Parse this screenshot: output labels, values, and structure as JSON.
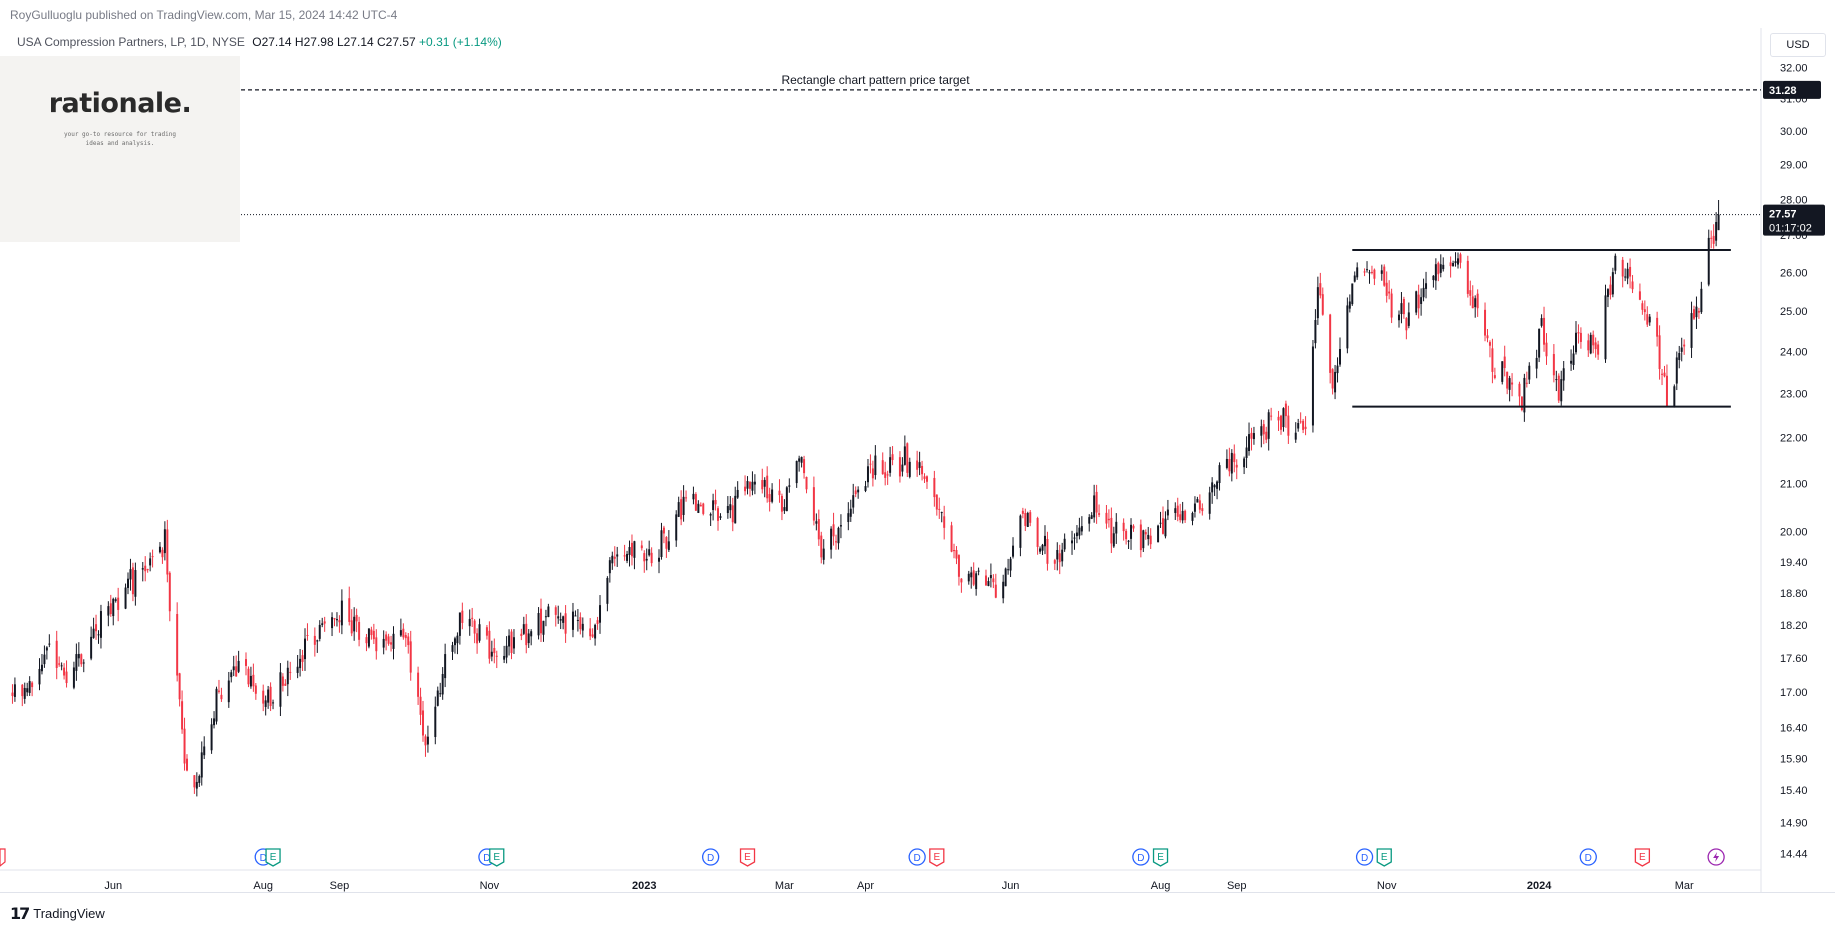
{
  "header": {
    "attribution": "RoyGulluoglu published on TradingView.com, Mar 15, 2024 14:42 UTC-4"
  },
  "legend": {
    "symbol": "USA Compression Partners, LP, 1D, NYSE",
    "ohlc": "O27.14  H27.98  L27.14  C27.57",
    "change": "+0.31 (+1.14%)"
  },
  "logo": {
    "name": "rationale.",
    "tagline": "your go-to resource for trading ideas and analysis."
  },
  "colors": {
    "up": "#131722",
    "down": "#f23645",
    "grid": "#ffffff"
  },
  "footer": {
    "brand": "TradingView"
  },
  "chart_data": {
    "type": "candlestick",
    "currency": "USD",
    "y_scale": "log",
    "ylim": [
      14.2,
      33.1
    ],
    "price_ticks": [
      "32.00",
      "31.00",
      "30.00",
      "29.00",
      "28.00",
      "27.00",
      "26.00",
      "25.00",
      "24.00",
      "23.00",
      "22.00",
      "21.00",
      "20.00",
      "19.40",
      "18.80",
      "18.20",
      "17.60",
      "17.00",
      "16.40",
      "15.90",
      "15.40",
      "14.90",
      "14.44"
    ],
    "x_ticks": [
      {
        "label": "Jun",
        "date": "2022-06-01",
        "bold": false
      },
      {
        "label": "Aug",
        "date": "2022-08-01",
        "bold": false
      },
      {
        "label": "Sep",
        "date": "2022-09-01",
        "bold": false
      },
      {
        "label": "Nov",
        "date": "2022-11-01",
        "bold": false
      },
      {
        "label": "2023",
        "date": "2023-01-03",
        "bold": true
      },
      {
        "label": "Mar",
        "date": "2023-03-01",
        "bold": false
      },
      {
        "label": "Apr",
        "date": "2023-04-03",
        "bold": false
      },
      {
        "label": "Jun",
        "date": "2023-06-01",
        "bold": false
      },
      {
        "label": "Aug",
        "date": "2023-08-01",
        "bold": false
      },
      {
        "label": "Sep",
        "date": "2023-09-01",
        "bold": false
      },
      {
        "label": "Nov",
        "date": "2023-11-01",
        "bold": false
      },
      {
        "label": "2024",
        "date": "2024-01-02",
        "bold": true
      },
      {
        "label": "Mar",
        "date": "2024-03-01",
        "bold": false
      }
    ],
    "anchors": [
      {
        "date": "2022-04-25",
        "price": 17.0
      },
      {
        "date": "2022-05-05",
        "price": 17.7
      },
      {
        "date": "2022-05-14",
        "price": 17.2
      },
      {
        "date": "2022-05-28",
        "price": 18.3
      },
      {
        "date": "2022-06-12",
        "price": 19.3
      },
      {
        "date": "2022-06-22",
        "price": 19.8
      },
      {
        "date": "2022-07-02",
        "price": 15.1
      },
      {
        "date": "2022-07-10",
        "price": 16.6
      },
      {
        "date": "2022-07-22",
        "price": 17.5
      },
      {
        "date": "2022-08-02",
        "price": 16.8
      },
      {
        "date": "2022-08-20",
        "price": 17.9
      },
      {
        "date": "2022-09-02",
        "price": 18.5
      },
      {
        "date": "2022-09-15",
        "price": 17.9
      },
      {
        "date": "2022-09-28",
        "price": 18.0
      },
      {
        "date": "2022-10-06",
        "price": 16.1
      },
      {
        "date": "2022-10-15",
        "price": 17.7
      },
      {
        "date": "2022-10-22",
        "price": 18.4
      },
      {
        "date": "2022-11-03",
        "price": 17.6
      },
      {
        "date": "2022-11-25",
        "price": 18.4
      },
      {
        "date": "2022-12-14",
        "price": 18.1
      },
      {
        "date": "2022-12-22",
        "price": 19.6
      },
      {
        "date": "2023-01-08",
        "price": 19.6
      },
      {
        "date": "2023-01-20",
        "price": 20.7
      },
      {
        "date": "2023-02-05",
        "price": 20.3
      },
      {
        "date": "2023-02-18",
        "price": 21.2
      },
      {
        "date": "2023-02-28",
        "price": 20.4
      },
      {
        "date": "2023-03-07",
        "price": 21.8
      },
      {
        "date": "2023-03-16",
        "price": 19.6
      },
      {
        "date": "2023-03-25",
        "price": 20.2
      },
      {
        "date": "2023-04-05",
        "price": 21.3
      },
      {
        "date": "2023-04-20",
        "price": 21.5
      },
      {
        "date": "2023-05-01",
        "price": 20.8
      },
      {
        "date": "2023-05-12",
        "price": 19.1
      },
      {
        "date": "2023-05-20",
        "price": 19.2
      },
      {
        "date": "2023-05-28",
        "price": 18.8
      },
      {
        "date": "2023-06-06",
        "price": 20.3
      },
      {
        "date": "2023-06-20",
        "price": 19.4
      },
      {
        "date": "2023-07-05",
        "price": 20.5
      },
      {
        "date": "2023-07-14",
        "price": 19.9
      },
      {
        "date": "2023-07-30",
        "price": 20.0
      },
      {
        "date": "2023-08-18",
        "price": 20.6
      },
      {
        "date": "2023-09-01",
        "price": 21.6
      },
      {
        "date": "2023-09-15",
        "price": 22.4
      },
      {
        "date": "2023-09-29",
        "price": 22.3
      },
      {
        "date": "2023-10-04",
        "price": 25.5
      },
      {
        "date": "2023-10-10",
        "price": 23.2
      },
      {
        "date": "2023-10-20",
        "price": 26.1
      },
      {
        "date": "2023-10-30",
        "price": 26.0
      },
      {
        "date": "2023-11-03",
        "price": 25.0
      },
      {
        "date": "2023-11-10",
        "price": 24.8
      },
      {
        "date": "2023-11-20",
        "price": 26.0
      },
      {
        "date": "2023-11-30",
        "price": 26.3
      },
      {
        "date": "2023-12-06",
        "price": 25.2
      },
      {
        "date": "2023-12-15",
        "price": 23.6
      },
      {
        "date": "2023-12-26",
        "price": 22.9
      },
      {
        "date": "2024-01-03",
        "price": 24.5
      },
      {
        "date": "2024-01-10",
        "price": 22.9
      },
      {
        "date": "2024-01-18",
        "price": 24.3
      },
      {
        "date": "2024-01-26",
        "price": 24.1
      },
      {
        "date": "2024-02-02",
        "price": 26.4
      },
      {
        "date": "2024-02-12",
        "price": 25.3
      },
      {
        "date": "2024-02-20",
        "price": 23.9
      },
      {
        "date": "2024-02-23",
        "price": 22.8
      },
      {
        "date": "2024-03-01",
        "price": 24.3
      },
      {
        "date": "2024-03-06",
        "price": 25.0
      },
      {
        "date": "2024-03-11",
        "price": 26.6
      },
      {
        "date": "2024-03-14",
        "price": 27.26
      },
      {
        "date": "2024-03-15",
        "price": 27.57
      }
    ],
    "last_candle": {
      "date": "2024-03-15",
      "open": 27.14,
      "high": 27.98,
      "low": 27.14,
      "close": 27.57
    },
    "current_price_label": "27.57",
    "countdown_label": "01:17:02",
    "levels": [
      {
        "name": "target",
        "price": 31.28,
        "style": "dashed",
        "label": "31.28",
        "annotation": "Rectangle chart pattern price target",
        "start": "2022-04-20",
        "end": "2024-04-10"
      },
      {
        "name": "resistance",
        "price": 26.6,
        "style": "solid",
        "start": "2023-10-18",
        "end": "2024-03-20"
      },
      {
        "name": "support",
        "price": 22.7,
        "style": "solid",
        "start": "2023-10-18",
        "end": "2024-03-20"
      }
    ],
    "events": [
      {
        "date": "2022-08-01",
        "type": "D"
      },
      {
        "date": "2022-08-05",
        "type": "E"
      },
      {
        "date": "2022-10-31",
        "type": "D"
      },
      {
        "date": "2022-11-04",
        "type": "E"
      },
      {
        "date": "2023-01-30",
        "type": "D"
      },
      {
        "date": "2023-02-14",
        "type": "E",
        "color": "red"
      },
      {
        "date": "2023-04-24",
        "type": "D"
      },
      {
        "date": "2023-05-02",
        "type": "E",
        "color": "red"
      },
      {
        "date": "2023-07-24",
        "type": "D"
      },
      {
        "date": "2023-08-01",
        "type": "E"
      },
      {
        "date": "2023-10-23",
        "type": "D"
      },
      {
        "date": "2023-10-31",
        "type": "E"
      },
      {
        "date": "2024-01-22",
        "type": "D"
      },
      {
        "date": "2024-02-13",
        "type": "E",
        "color": "red"
      },
      {
        "date": "2024-03-14",
        "type": "split"
      }
    ]
  }
}
